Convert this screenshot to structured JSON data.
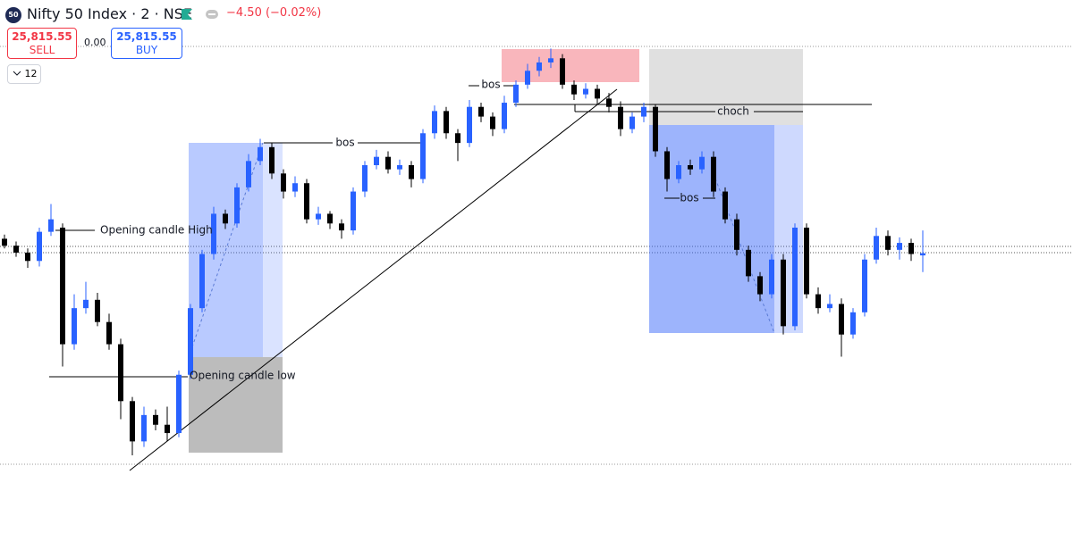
{
  "header": {
    "icon": "50",
    "symbol": "Nifty 50 Index · 2 · NSE",
    "change": "−4.50 (−0.02%)",
    "sell_price": "25,815.55",
    "sell_label": "SELL",
    "spread": "0.00",
    "buy_price": "25,815.55",
    "buy_label": "BUY",
    "interval": "12"
  },
  "chart_data": {
    "type": "candlestick",
    "up_color": "#2962ff",
    "down_color": "#000000",
    "ylim": [
      25614,
      25998
    ],
    "annotations": [
      "Opening candle High",
      "Opening candle low",
      "bos",
      "bos",
      "choch",
      "bos"
    ],
    "open": [
      25826,
      25821,
      25816,
      25810,
      25831,
      25834,
      25750,
      25776,
      25782,
      25766,
      25750,
      25709,
      25680,
      25699,
      25692,
      25686,
      25728,
      25776,
      25815,
      25844,
      25837,
      25863,
      25882,
      25892,
      25873,
      25860,
      25866,
      25840,
      25844,
      25837,
      25832,
      25860,
      25879,
      25885,
      25876,
      25879,
      25869,
      25902,
      25918,
      25902,
      25895,
      25921,
      25914,
      25905,
      25924,
      25937,
      25947,
      25953,
      25956,
      25937,
      25930,
      25934,
      25927,
      25921,
      25905,
      25914,
      25921,
      25889,
      25869,
      25879,
      25876,
      25885,
      25860,
      25840,
      25818,
      25799,
      25786,
      25811,
      25763,
      25834,
      25786,
      25776,
      25779,
      25757,
      25773,
      25811,
      25828,
      25818,
      25823,
      25814
    ],
    "high": [
      25829,
      25824,
      25819,
      25834,
      25851,
      25837,
      25786,
      25795,
      25787,
      25772,
      25754,
      25712,
      25705,
      25703,
      25705,
      25731,
      25779,
      25818,
      25849,
      25847,
      25866,
      25887,
      25898,
      25895,
      25876,
      25871,
      25869,
      25849,
      25846,
      25840,
      25863,
      25882,
      25890,
      25889,
      25883,
      25882,
      25905,
      25922,
      25921,
      25905,
      25926,
      25924,
      25917,
      25929,
      25940,
      25952,
      25957,
      25963,
      25959,
      25940,
      25938,
      25937,
      25931,
      25925,
      25917,
      25924,
      25923,
      25892,
      25882,
      25883,
      25889,
      25889,
      25863,
      25844,
      25821,
      25802,
      25815,
      25815,
      25837,
      25837,
      25791,
      25786,
      25783,
      25776,
      25815,
      25834,
      25832,
      25827,
      25826,
      25832
    ],
    "low": [
      25819,
      25813,
      25805,
      25806,
      25828,
      25734,
      25746,
      25772,
      25763,
      25746,
      25696,
      25670,
      25676,
      25688,
      25680,
      25683,
      25725,
      25773,
      25811,
      25833,
      25834,
      25860,
      25879,
      25869,
      25855,
      25856,
      25837,
      25836,
      25833,
      25826,
      25829,
      25856,
      25876,
      25873,
      25872,
      25863,
      25866,
      25898,
      25898,
      25882,
      25892,
      25910,
      25900,
      25902,
      25921,
      25934,
      25943,
      25949,
      25934,
      25926,
      25927,
      25923,
      25917,
      25900,
      25902,
      25910,
      25885,
      25860,
      25866,
      25872,
      25873,
      25856,
      25837,
      25814,
      25795,
      25781,
      25783,
      25757,
      25760,
      25783,
      25772,
      25773,
      25741,
      25754,
      25770,
      25808,
      25814,
      25811,
      25810,
      25802
    ],
    "close": [
      25821,
      25816,
      25810,
      25831,
      25840,
      25750,
      25776,
      25782,
      25766,
      25750,
      25709,
      25680,
      25699,
      25692,
      25686,
      25728,
      25776,
      25815,
      25844,
      25837,
      25863,
      25882,
      25892,
      25873,
      25860,
      25866,
      25840,
      25844,
      25837,
      25832,
      25860,
      25879,
      25885,
      25876,
      25879,
      25869,
      25902,
      25918,
      25902,
      25895,
      25921,
      25914,
      25905,
      25924,
      25937,
      25947,
      25953,
      25956,
      25937,
      25930,
      25934,
      25927,
      25921,
      25905,
      25914,
      25921,
      25889,
      25869,
      25879,
      25876,
      25885,
      25860,
      25840,
      25818,
      25799,
      25786,
      25811,
      25763,
      25834,
      25786,
      25776,
      25779,
      25757,
      25773,
      25811,
      25828,
      25818,
      25823,
      25815,
      25815.55
    ]
  }
}
